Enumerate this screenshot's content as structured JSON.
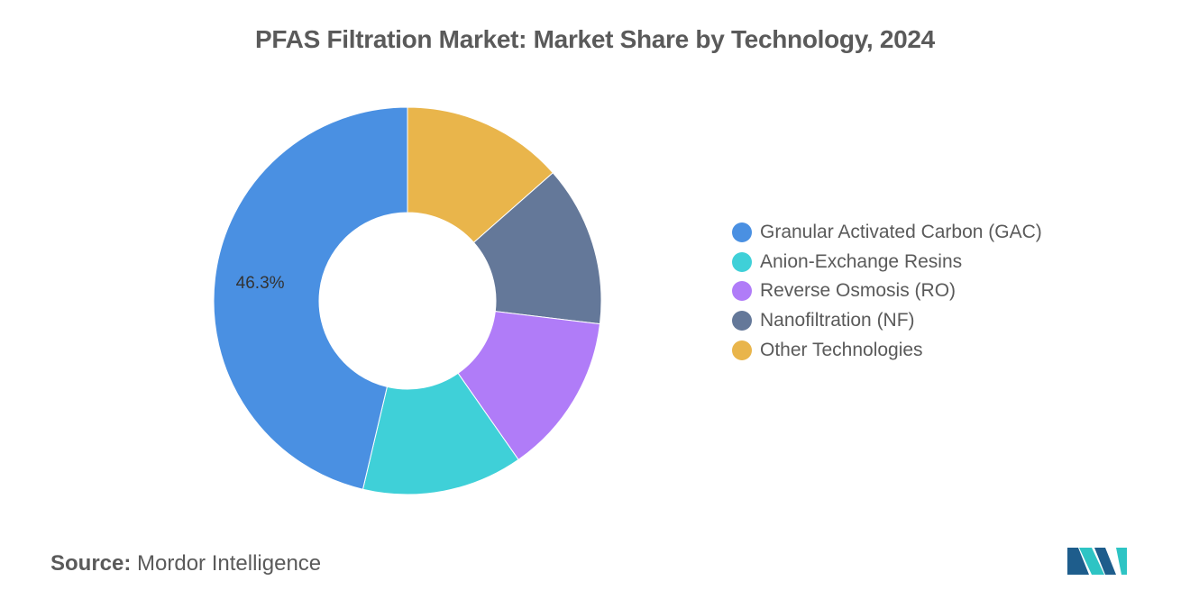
{
  "chart_data": {
    "type": "pie",
    "variant": "donut",
    "title": "PFAS Filtration Market: Market Share by Technology, 2024",
    "categories": [
      "Granular Activated Carbon (GAC)",
      "Anion-Exchange Resins",
      "Reverse Osmosis (RO)",
      "Nanofiltration (NF)",
      "Other Technologies"
    ],
    "values": [
      46.3,
      13.4,
      13.4,
      13.4,
      13.5
    ],
    "colors": [
      "#4a90e2",
      "#3fd0d8",
      "#b07cf8",
      "#647899",
      "#e9b54b"
    ],
    "data_labels": [
      {
        "category": "Granular Activated Carbon (GAC)",
        "text": "46.3%"
      }
    ],
    "legend_position": "right"
  },
  "source": {
    "label": "Source:",
    "text": "Mordor Intelligence"
  },
  "logo": {
    "icon": "mordor-intelligence-logo",
    "colors": [
      "#1e5d8c",
      "#2ec4c4"
    ]
  }
}
